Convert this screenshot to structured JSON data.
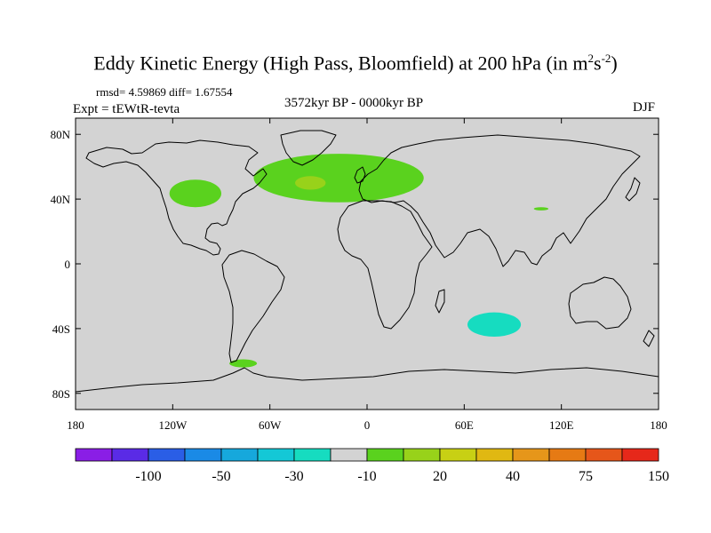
{
  "title": {
    "main": "Eddy Kinetic Energy (High Pass, Bloomfield) at 200 hPa (in m",
    "sup1": "2",
    "mid": "s",
    "sup2": "-2",
    "close": ")"
  },
  "stats": "rmsd= 4.59869 diff= 1.67554",
  "period": "3572kyr BP - 0000kyr BP",
  "experiment": "Expt = tEWtR-tevta",
  "season": "DJF",
  "map": {
    "lon_ticks": [
      "180",
      "120W",
      "60W",
      "0",
      "60E",
      "120E",
      "180"
    ],
    "lat_ticks": [
      "80N",
      "40N",
      "0",
      "40S",
      "80S"
    ],
    "ocean_color": "#d3d3d3",
    "coast_color": "#000000"
  },
  "colorbar": {
    "colors": [
      "#8a1ee6",
      "#5a2be6",
      "#2a5ee6",
      "#1a8ae6",
      "#16a8dc",
      "#14c8d6",
      "#16dcc0",
      "#d3d3d3",
      "#5ad21e",
      "#98d21a",
      "#c8d014",
      "#e0b812",
      "#e6961a",
      "#e67a14",
      "#e6561a",
      "#e6281a"
    ],
    "labels": [
      "-100",
      "-50",
      "-30",
      "-10",
      "20",
      "40",
      "75",
      "150"
    ]
  },
  "chart_data": {
    "type": "heatmap",
    "variable": "Eddy Kinetic Energy (High Pass, Bloomfield) at 200 hPa",
    "units": "m^2 s^-2",
    "projection": "cylindrical equidistant",
    "lon_range": [
      -180,
      180
    ],
    "lat_range": [
      -90,
      90
    ],
    "levels": [
      -150,
      -100,
      -75,
      -50,
      -40,
      -30,
      -20,
      -10,
      10,
      20,
      30,
      40,
      50,
      75,
      100,
      150
    ],
    "anomaly_regions": [
      {
        "name": "North Atlantic",
        "lon": [
          -70,
          35
        ],
        "lat": [
          38,
          68
        ],
        "level": "10-20",
        "color": "#5ad21e",
        "core": {
          "lon": -35,
          "lat": 50,
          "level": "20-30",
          "color": "#98d21a"
        }
      },
      {
        "name": "North America",
        "lon": [
          -122,
          -90
        ],
        "lat": [
          35,
          52
        ],
        "level": "10-20",
        "color": "#5ad21e"
      },
      {
        "name": "East Asia",
        "lon": [
          103,
          112
        ],
        "lat": [
          33,
          35
        ],
        "level": "10-20",
        "color": "#5ad21e"
      },
      {
        "name": "South Indian Ocean",
        "lon": [
          62,
          95
        ],
        "lat": [
          -45,
          -30
        ],
        "level": "-10 to -20",
        "color": "#16dcc0"
      },
      {
        "name": "Drake Passage",
        "lon": [
          -85,
          -68
        ],
        "lat": [
          -64,
          -59
        ],
        "level": "10-20",
        "color": "#5ad21e"
      }
    ]
  }
}
